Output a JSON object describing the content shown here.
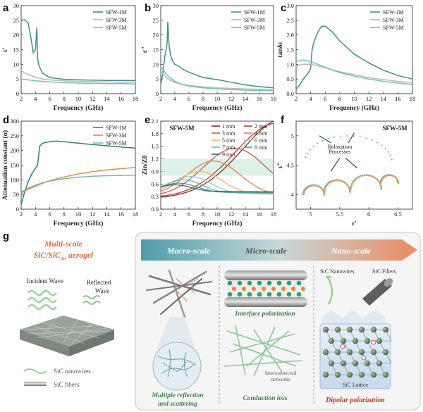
{
  "panels": {
    "a": {
      "label": "a"
    },
    "b": {
      "label": "b"
    },
    "c": {
      "label": "c"
    },
    "d": {
      "label": "d"
    },
    "e": {
      "label": "e"
    },
    "f": {
      "label": "f"
    },
    "g": {
      "label": "g"
    }
  },
  "colors": {
    "sfw1m": "#3f8f8a",
    "sfw3m": "#b9b9b9",
    "sfw5m": "#6fc6b0",
    "d_sfw1m": "#2f7f78",
    "d_sfw3m": "#e8894a",
    "d_sfw5m": "#79b7b0"
  },
  "chart_data": [
    {
      "id": "a",
      "type": "line",
      "xlabel": "Frequency (GHz)",
      "ylabel": "ε'",
      "xlim": [
        2,
        18
      ],
      "ylim": [
        0,
        30
      ],
      "xticks": [
        2,
        4,
        6,
        8,
        10,
        12,
        14,
        16,
        18
      ],
      "yticks": [
        0,
        5,
        10,
        15,
        20,
        25,
        30
      ],
      "legend": "top-right",
      "series": [
        {
          "name": "SFW-1M",
          "x": [
            2,
            2.5,
            3,
            3.3,
            3.7,
            4,
            4.2,
            4.3,
            4.5,
            5,
            6,
            8,
            10,
            12,
            14,
            16,
            18
          ],
          "y": [
            25,
            25.2,
            24,
            20,
            14,
            15,
            22.5,
            12,
            9.5,
            7,
            5.5,
            4.9,
            4.7,
            4.6,
            4.5,
            4.5,
            4.5
          ]
        },
        {
          "name": "SFW-3M",
          "x": [
            2,
            3,
            4,
            5,
            6,
            8,
            10,
            12,
            14,
            16,
            18
          ],
          "y": [
            7.8,
            6.5,
            5.6,
            5.0,
            4.7,
            4.4,
            4.2,
            4.1,
            4.0,
            3.9,
            3.8
          ]
        },
        {
          "name": "SFW-5M",
          "x": [
            2,
            3,
            4,
            5,
            6,
            8,
            10,
            12,
            14,
            16,
            18
          ],
          "y": [
            5.0,
            4.7,
            4.4,
            4.2,
            4.0,
            3.8,
            3.6,
            3.5,
            3.4,
            3.4,
            3.3
          ]
        }
      ]
    },
    {
      "id": "b",
      "type": "line",
      "xlabel": "Frequency (GHz)",
      "ylabel": "ε\"",
      "xlim": [
        2,
        18
      ],
      "ylim": [
        0,
        30
      ],
      "xticks": [
        2,
        4,
        6,
        8,
        10,
        12,
        14,
        16,
        18
      ],
      "yticks": [
        0,
        5,
        10,
        15,
        20,
        25,
        30
      ],
      "legend": "top-right",
      "series": [
        {
          "name": "SFW-1M",
          "x": [
            2,
            2.3,
            2.6,
            2.9,
            3.0,
            3.2,
            3.4,
            3.7,
            4,
            4.5,
            5,
            6,
            8,
            10,
            12,
            14,
            16,
            18
          ],
          "y": [
            3,
            7,
            13,
            17,
            24.5,
            16,
            13,
            11,
            10,
            9.5,
            8.5,
            7.3,
            5.5,
            4.8,
            3.9,
            3.0,
            2.4,
            2.0
          ]
        },
        {
          "name": "SFW-3M",
          "x": [
            2,
            3,
            4,
            5,
            6,
            8,
            10,
            12,
            14,
            16,
            18
          ],
          "y": [
            7.5,
            5.0,
            3.8,
            3.2,
            2.8,
            2.3,
            2.0,
            1.8,
            1.6,
            1.5,
            1.4
          ]
        },
        {
          "name": "SFW-5M",
          "x": [
            2,
            3,
            4,
            5,
            6,
            8,
            10,
            12,
            14,
            16,
            18
          ],
          "y": [
            9,
            6,
            4.2,
            3.2,
            2.6,
            2.0,
            1.6,
            1.4,
            1.2,
            1.1,
            1.0
          ]
        }
      ]
    },
    {
      "id": "c",
      "type": "line",
      "xlabel": "Frequency (GHz)",
      "ylabel": "tanδε",
      "xlim": [
        2,
        18
      ],
      "ylim": [
        0,
        3.0
      ],
      "xticks": [
        2,
        4,
        6,
        8,
        10,
        12,
        14,
        16,
        18
      ],
      "yticks": [
        0.0,
        0.5,
        1.0,
        1.5,
        2.0,
        2.5,
        3.0
      ],
      "legend": "top-right",
      "series": [
        {
          "name": "SFW-1M",
          "x": [
            2,
            2.5,
            3,
            3.5,
            4,
            4.2,
            4.5,
            5,
            5.5,
            6,
            7,
            8,
            10,
            12,
            14,
            16,
            18
          ],
          "y": [
            0.15,
            0.3,
            0.5,
            0.65,
            0.85,
            1.5,
            1.8,
            2.1,
            2.3,
            2.3,
            2.1,
            1.8,
            1.35,
            1.05,
            0.8,
            0.62,
            0.5
          ]
        },
        {
          "name": "SFW-3M",
          "x": [
            2,
            3,
            4,
            5,
            6,
            8,
            10,
            12,
            14,
            16,
            18
          ],
          "y": [
            0.95,
            1.0,
            1.0,
            0.95,
            0.88,
            0.75,
            0.65,
            0.55,
            0.48,
            0.42,
            0.38
          ]
        },
        {
          "name": "SFW-5M",
          "x": [
            2,
            3,
            4,
            5,
            6,
            8,
            10,
            12,
            14,
            16,
            18
          ],
          "y": [
            1.1,
            1.15,
            1.1,
            1.0,
            0.9,
            0.72,
            0.6,
            0.5,
            0.42,
            0.36,
            0.32
          ]
        }
      ]
    },
    {
      "id": "d",
      "type": "line",
      "xlabel": "Frequency (GHz)",
      "ylabel": "Attenuation constant (α)",
      "xlim": [
        2,
        18
      ],
      "ylim": [
        0,
        300
      ],
      "xticks": [
        2,
        4,
        6,
        8,
        10,
        12,
        14,
        16,
        18
      ],
      "yticks": [
        0,
        50,
        100,
        150,
        200,
        250,
        300
      ],
      "legend": "top-right",
      "series": [
        {
          "name": "SFW-1M",
          "x": [
            2,
            2.5,
            3,
            3.5,
            4,
            4.3,
            4.6,
            5,
            6,
            7,
            8,
            10,
            12,
            14,
            16,
            18
          ],
          "y": [
            15,
            60,
            95,
            120,
            140,
            150,
            215,
            225,
            230,
            232,
            230,
            225,
            220,
            216,
            212,
            208
          ]
        },
        {
          "name": "SFW-3M",
          "x": [
            2,
            3,
            4,
            5,
            6,
            8,
            10,
            12,
            14,
            16,
            18
          ],
          "y": [
            55,
            68,
            78,
            88,
            97,
            110,
            120,
            128,
            134,
            138,
            142
          ]
        },
        {
          "name": "SFW-5M",
          "x": [
            2,
            3,
            4,
            5,
            6,
            8,
            10,
            12,
            14,
            16,
            18
          ],
          "y": [
            58,
            72,
            82,
            90,
            96,
            104,
            109,
            112,
            114,
            115,
            116
          ]
        }
      ]
    },
    {
      "id": "e",
      "type": "line",
      "annotation": "SFW-5M",
      "xlabel": "Frequency (GHz)",
      "ylabel": "Zin/Z0",
      "xlim": [
        2,
        18
      ],
      "ylim": [
        0.0,
        2.1
      ],
      "xticks": [
        2,
        4,
        6,
        8,
        10,
        12,
        14,
        16,
        18
      ],
      "yticks": [
        0.0,
        0.3,
        0.6,
        0.9,
        1.2,
        1.5,
        1.8,
        2.1
      ],
      "band": [
        0.8,
        1.2
      ],
      "legend": "top-right",
      "series": [
        {
          "name": "1 mm",
          "color": "#8b2a22",
          "peak": 20,
          "h": 2.2
        },
        {
          "name": "2 mm",
          "color": "#b8402f",
          "peak": 18.5,
          "h": 2.05
        },
        {
          "name": "3 mm",
          "color": "#d9543d",
          "peak": 12.5,
          "h": 1.45
        },
        {
          "name": "4 mm",
          "color": "#e8814f",
          "peak": 9.5,
          "h": 1.15
        },
        {
          "name": "5 mm",
          "color": "#f0b678",
          "peak": 7.5,
          "h": 0.9
        },
        {
          "name": "6 mm",
          "color": "#8ed0c3",
          "peak": 6.2,
          "h": 0.78
        },
        {
          "name": "7 mm",
          "color": "#6ab8ad",
          "peak": 5.2,
          "h": 0.7
        },
        {
          "name": "8 mm",
          "color": "#4a9990",
          "peak": 4.6,
          "h": 0.62
        },
        {
          "name": "9 mm",
          "color": "#2f6f6a",
          "peak": 4.0,
          "h": 0.58
        }
      ]
    },
    {
      "id": "f",
      "type": "scatter",
      "annotation": "SFW-5M",
      "xlabel": "ε'",
      "ylabel": "ε\"",
      "xlim": [
        4.75,
        6.75
      ],
      "ylim": [
        3.75,
        5.25
      ],
      "xticks": [
        5.0,
        5.5,
        6.0,
        6.5
      ],
      "yticks": [
        4.0,
        4.5,
        5.0
      ],
      "note": "Relaxation Processes"
    }
  ],
  "g": {
    "title_line1": "Multi-scale",
    "title_line2": "SiC/SiC",
    "title_sub": "nw",
    "title_end": " aerogel",
    "incident": "Incident Wave",
    "reflected1": "Reflected",
    "reflected2": "Wave",
    "legend_nanowires": "SiC nanowires",
    "legend_fibers": "SiC fibers",
    "scale_macro": "Macro-scale",
    "scale_micro": "Micro-scale",
    "scale_nano": "Nano-scale",
    "cap_multiple1": "Multiple reflection",
    "cap_multiple2": "and scattering",
    "cap_interface": "Interface polarization",
    "cap_conduction": "Conduction loss",
    "cap_interconnected1": "Interconnected",
    "cap_interconnected2": "networks",
    "cap_sic_nanowires": "SiC Nanowires",
    "cap_sic_fibers": "SiC Fibers",
    "cap_lattice": "SiC Lattice",
    "cap_dipolar": "Dipolar polarization"
  }
}
